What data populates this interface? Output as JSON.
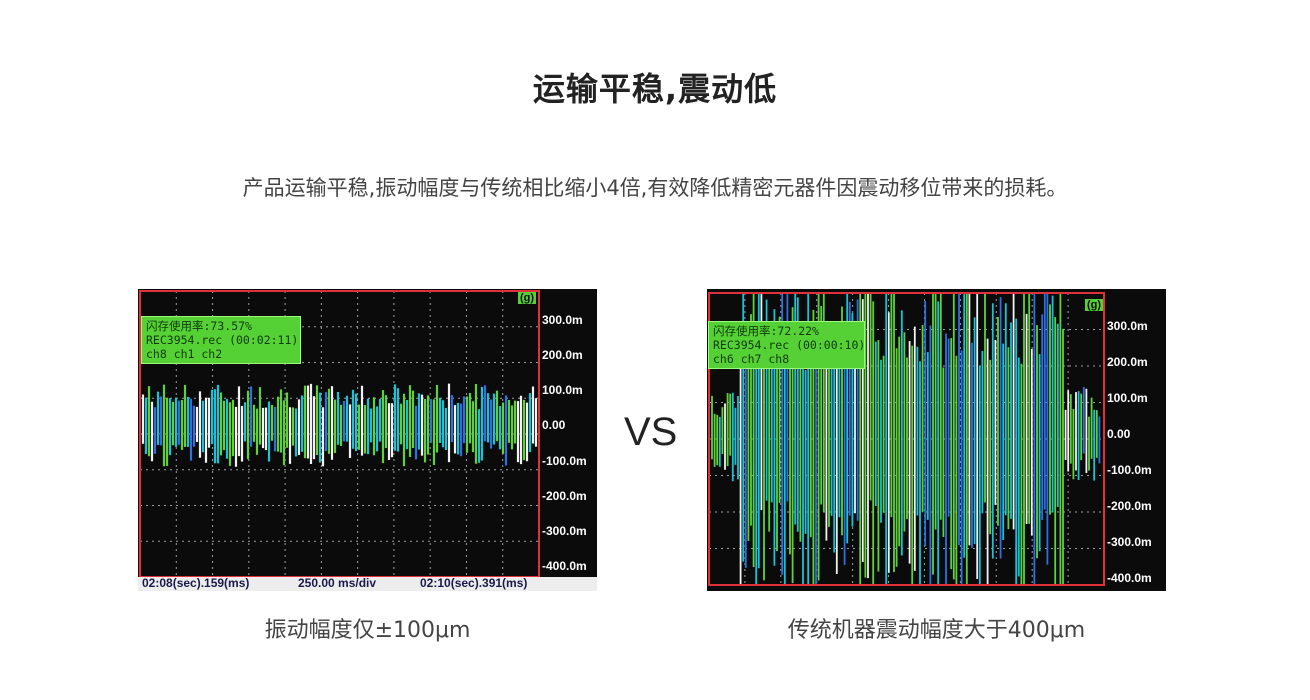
{
  "header": {
    "title": "运输平稳,震动低",
    "subtitle": "产品运输平稳,振动幅度与传统相比缩小4倍,有效降低精密元器件因震动移位带来的损耗。"
  },
  "compare_label": "VS",
  "left_panel": {
    "info_lines": [
      "闪存使用率:73.57%",
      "REC3954.rec (00:02:11)",
      "ch8 ch1 ch2"
    ],
    "unit": "(g)",
    "y_labels": [
      "300.0m",
      "200.0m",
      "100.0m",
      "0.00",
      "-100.0m",
      "-200.0m",
      "-300.0m",
      "-400.0m"
    ],
    "bottom": {
      "start": "02:08(sec).159(ms)",
      "scale": "250.00 ms/div",
      "end": "02:10(sec).391(ms)"
    },
    "caption": "振动幅度仅±100μm",
    "amplitude_m": 0.1
  },
  "right_panel": {
    "info_lines": [
      "闪存使用率:72.22%",
      "REC3954.rec (00:00:10)",
      "ch6 ch7 ch8"
    ],
    "unit": "(g)",
    "y_labels": [
      "300.0m",
      "200.0m",
      "100.0m",
      "0.00",
      "-100.0m",
      "-200.0m",
      "-300.0m",
      "-400.0m"
    ],
    "caption": "传统机器震动幅度大于400μm",
    "amplitude_m": 0.4
  },
  "colors": {
    "trace_green": "#5fd23a",
    "trace_cyan": "#17c3d6",
    "trace_blue": "#2f6fe0",
    "trace_white": "#f2f2f2",
    "axis_red": "#e0303a",
    "grid": "#9aa0a8",
    "info_bg": "#55d136"
  }
}
